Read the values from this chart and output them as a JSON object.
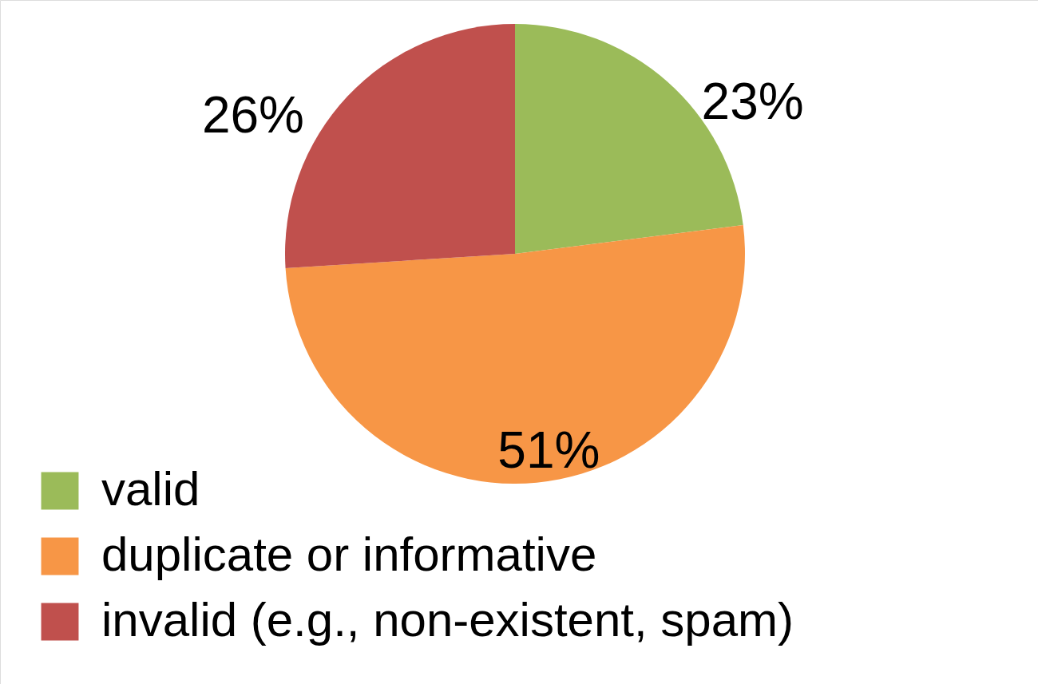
{
  "chart_data": {
    "type": "pie",
    "categories": [
      "valid",
      "duplicate or informative",
      "invalid (e.g., non-existent, spam)"
    ],
    "values": [
      23,
      51,
      26
    ],
    "colors": [
      "#9bbb59",
      "#f79646",
      "#c0504d"
    ],
    "value_labels": [
      "23%",
      "51%",
      "26%"
    ],
    "legend": "bottom left"
  }
}
